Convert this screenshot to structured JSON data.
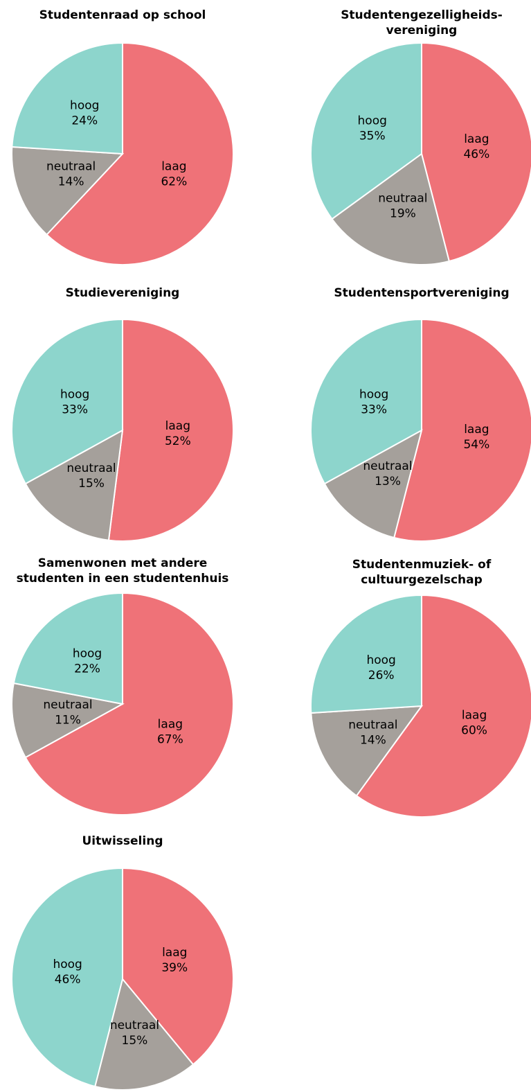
{
  "chart_data": [
    {
      "type": "pie",
      "title": "Studentenraad op school",
      "categories": [
        "laag",
        "neutraal",
        "hoog"
      ],
      "values": [
        62,
        14,
        24
      ],
      "value_labels": [
        "62%",
        "14%",
        "24%"
      ],
      "colors": [
        "#ef7278",
        "#a5a09b",
        "#8dd5cc"
      ]
    },
    {
      "type": "pie",
      "title": [
        "Studentengezelligheids-",
        "vereniging"
      ],
      "categories": [
        "laag",
        "neutraal",
        "hoog"
      ],
      "values": [
        46,
        19,
        35
      ],
      "value_labels": [
        "46%",
        "19%",
        "35%"
      ],
      "colors": [
        "#ef7278",
        "#a5a09b",
        "#8dd5cc"
      ]
    },
    {
      "type": "pie",
      "title": "Studievereniging",
      "categories": [
        "laag",
        "neutraal",
        "hoog"
      ],
      "values": [
        52,
        15,
        33
      ],
      "value_labels": [
        "52%",
        "15%",
        "33%"
      ],
      "colors": [
        "#ef7278",
        "#a5a09b",
        "#8dd5cc"
      ]
    },
    {
      "type": "pie",
      "title": "Studentensportvereniging",
      "categories": [
        "laag",
        "neutraal",
        "hoog"
      ],
      "values": [
        54,
        13,
        33
      ],
      "value_labels": [
        "54%",
        "13%",
        "33%"
      ],
      "colors": [
        "#ef7278",
        "#a5a09b",
        "#8dd5cc"
      ]
    },
    {
      "type": "pie",
      "title": [
        "Samenwonen met andere",
        "studenten in een studentenhuis"
      ],
      "categories": [
        "laag",
        "neutraal",
        "hoog"
      ],
      "values": [
        67,
        11,
        22
      ],
      "value_labels": [
        "67%",
        "11%",
        "22%"
      ],
      "colors": [
        "#ef7278",
        "#a5a09b",
        "#8dd5cc"
      ]
    },
    {
      "type": "pie",
      "title": [
        "Studentenmuziek- of",
        "cultuurgezelschap"
      ],
      "categories": [
        "laag",
        "neutraal",
        "hoog"
      ],
      "values": [
        60,
        14,
        26
      ],
      "value_labels": [
        "60%",
        "14%",
        "26%"
      ],
      "colors": [
        "#ef7278",
        "#a5a09b",
        "#8dd5cc"
      ]
    },
    {
      "type": "pie",
      "title": "Uitwisseling",
      "categories": [
        "laag",
        "neutraal",
        "hoog"
      ],
      "values": [
        39,
        15,
        46
      ],
      "value_labels": [
        "39%",
        "15%",
        "46%"
      ],
      "colors": [
        "#ef7278",
        "#a5a09b",
        "#8dd5cc"
      ]
    }
  ]
}
